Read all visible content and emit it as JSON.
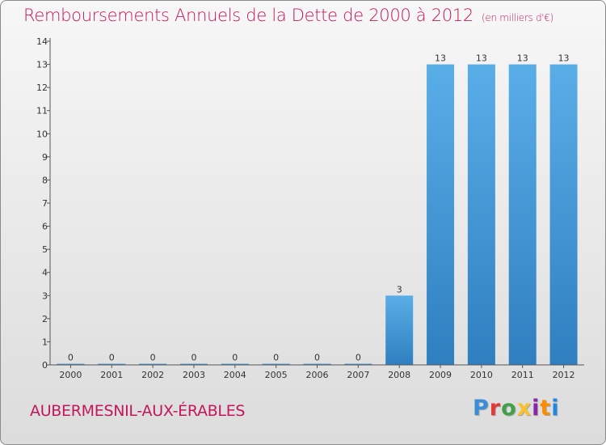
{
  "title": "Remboursements Annuels de la Dette de 2000 à 2012",
  "unit": "(en milliers d'€)",
  "commune": "AUBERMESNIL-AUX-ÉRABLES",
  "logo": {
    "letters": [
      "P",
      "r",
      "o",
      "x",
      "i",
      "t",
      "i"
    ],
    "colors": [
      "#3a8ed8",
      "#e53935",
      "#43a047",
      "#fbc02d",
      "#8e24aa",
      "#fb8c00",
      "#1e88e5"
    ]
  },
  "colors": {
    "bar_top": "#5aaee8",
    "bar_bottom": "#2f7fc0",
    "axis": "#555555"
  },
  "chart_data": {
    "type": "bar",
    "categories": [
      "2000",
      "2001",
      "2002",
      "2003",
      "2004",
      "2005",
      "2006",
      "2007",
      "2008",
      "2009",
      "2010",
      "2011",
      "2012"
    ],
    "values": [
      0,
      0,
      0,
      0,
      0,
      0,
      0,
      0,
      3,
      13,
      13,
      13,
      13
    ],
    "data_labels": [
      "0",
      "0",
      "0",
      "0",
      "0",
      "0",
      "0",
      "0",
      "3",
      "13",
      "13",
      "13",
      "13"
    ],
    "yticks": [
      0,
      1,
      2,
      3,
      4,
      5,
      6,
      7,
      8,
      9,
      10,
      11,
      12,
      13,
      14
    ],
    "ylim": [
      0,
      14
    ],
    "title": "Remboursements Annuels de la Dette de 2000 à 2012",
    "xlabel": "",
    "ylabel": "",
    "grid": false
  }
}
